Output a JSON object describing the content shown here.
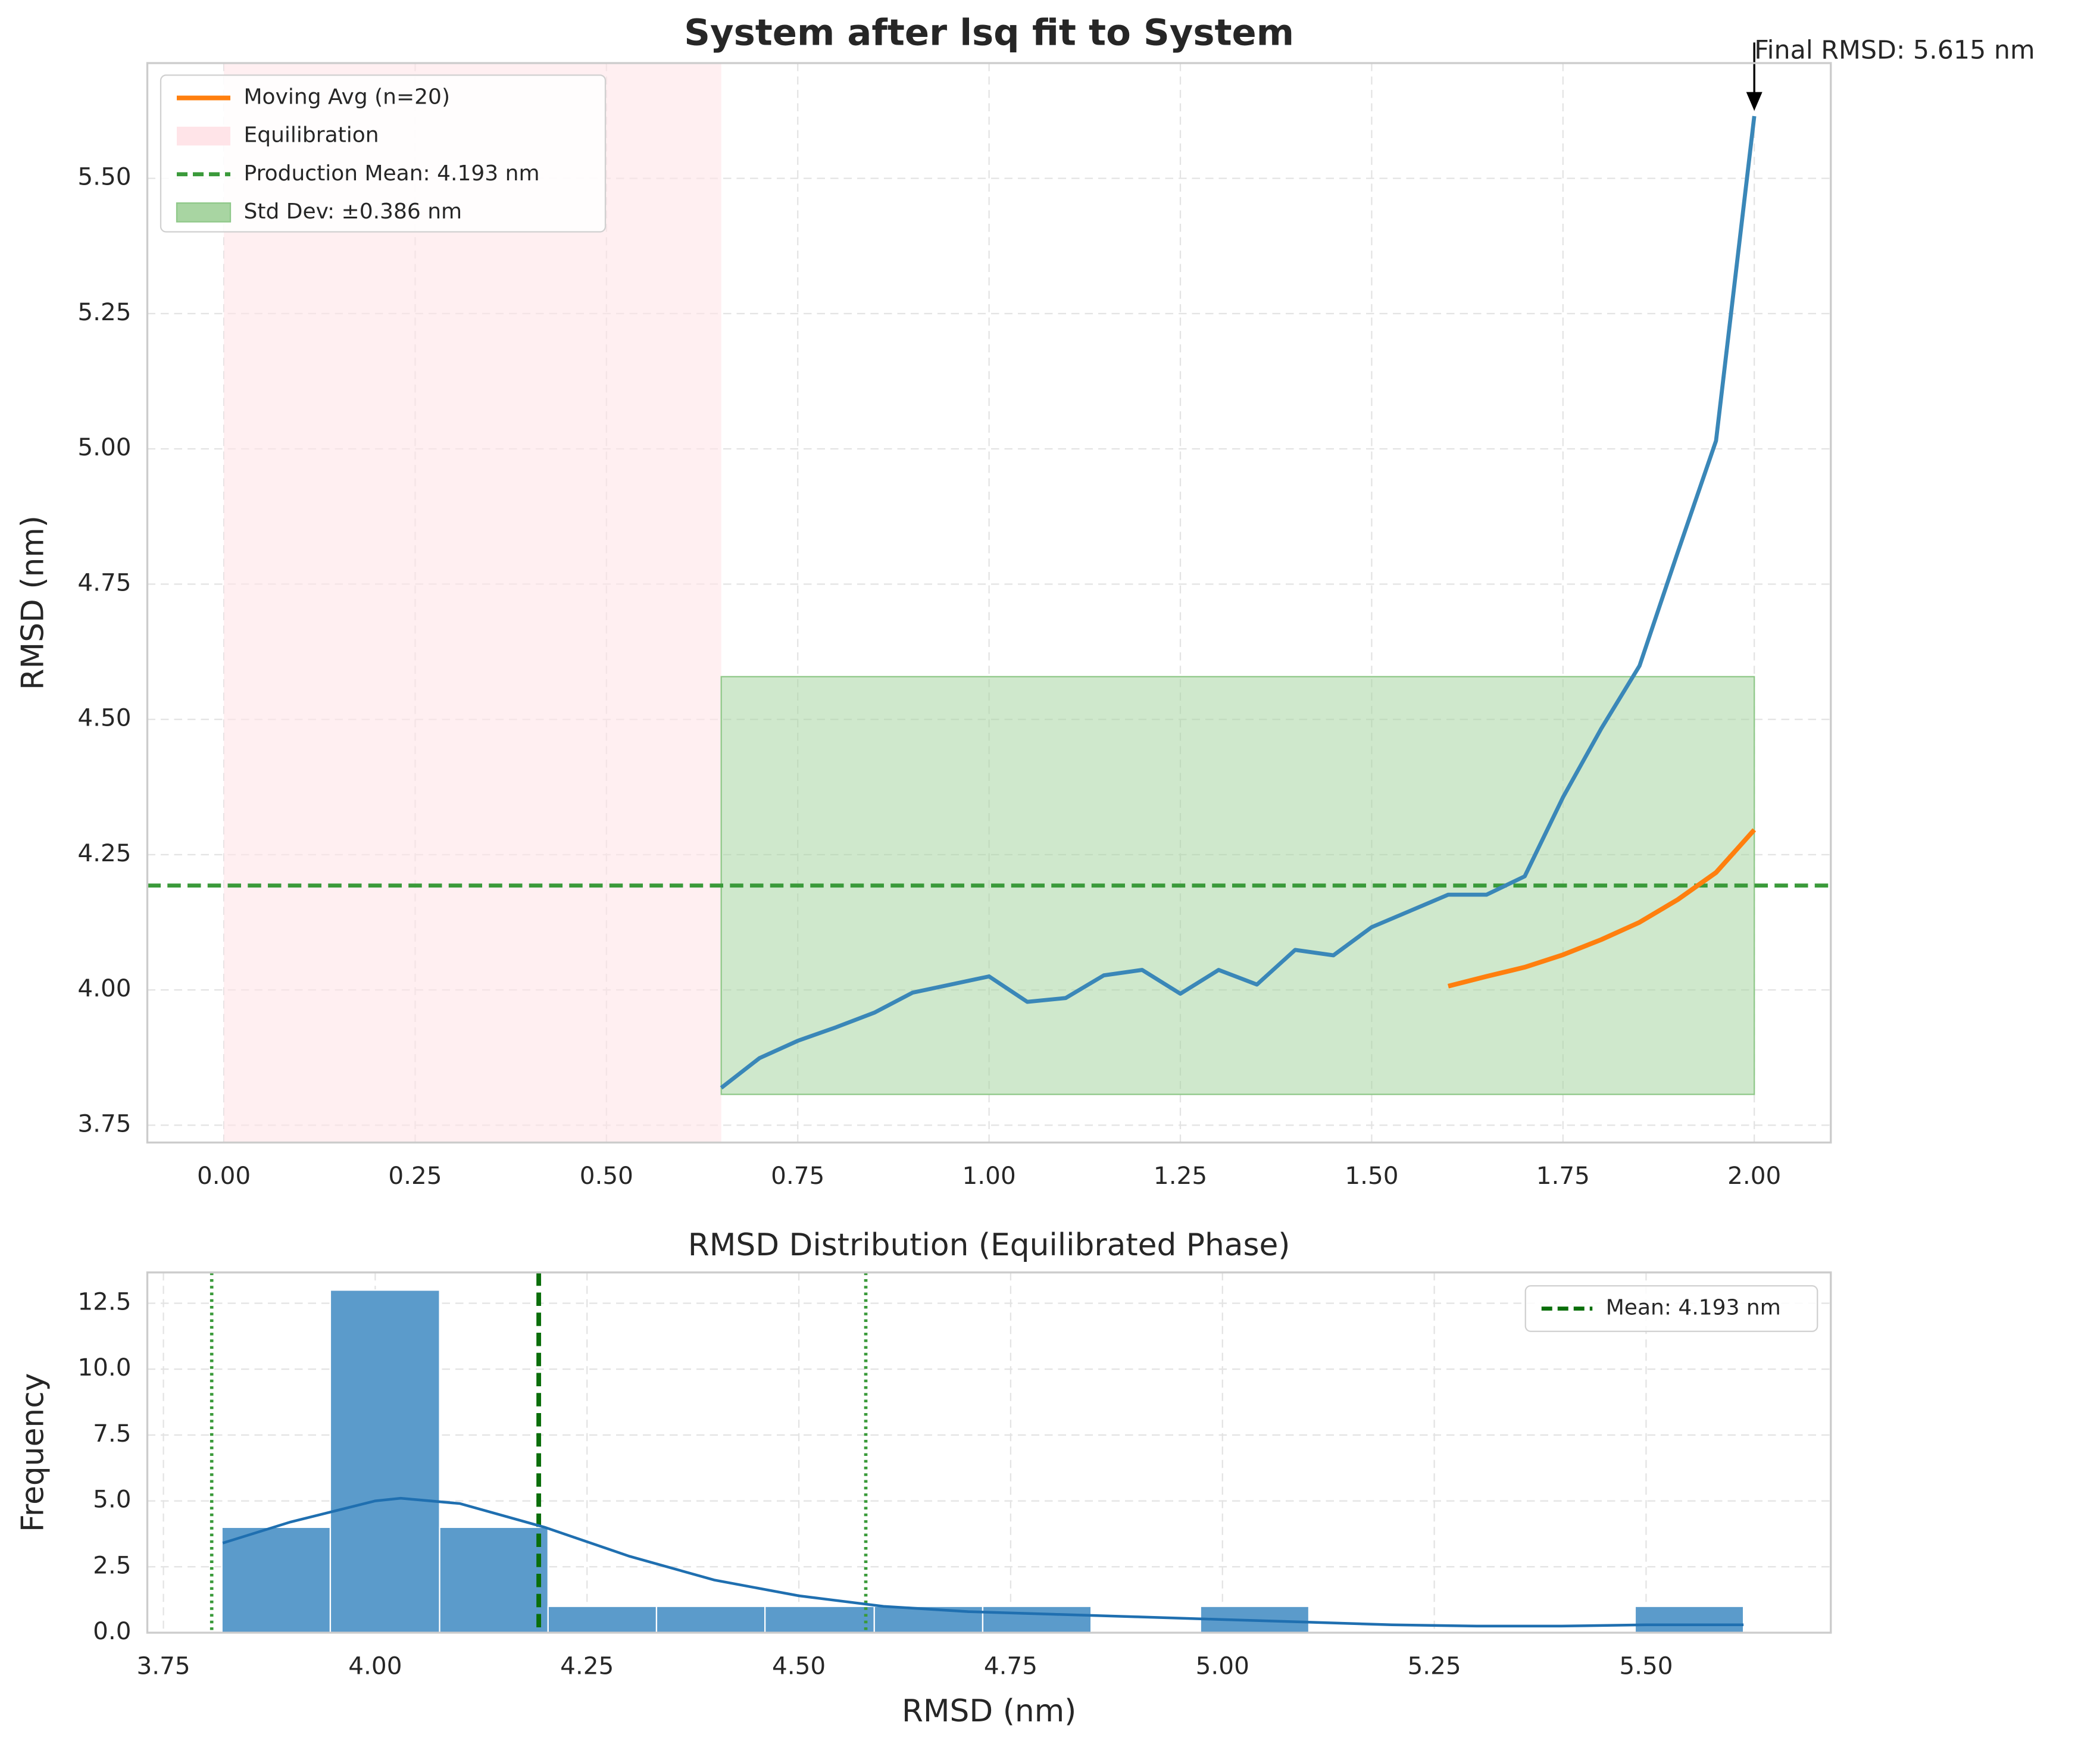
{
  "chart_data": [
    {
      "type": "line",
      "title": "System after lsq fit to System",
      "ylabel": "RMSD (nm)",
      "x": [
        0.65,
        0.7,
        0.75,
        0.8,
        0.85,
        0.9,
        0.95,
        1.0,
        1.05,
        1.1,
        1.15,
        1.2,
        1.25,
        1.3,
        1.35,
        1.4,
        1.45,
        1.5,
        1.55,
        1.6,
        1.65,
        1.7,
        1.75,
        1.8,
        1.85,
        1.9,
        1.95,
        2.0
      ],
      "series": [
        {
          "color": "#3a87b8",
          "values": [
            3.819,
            3.874,
            3.906,
            3.931,
            3.958,
            3.995,
            4.01,
            4.025,
            3.978,
            3.985,
            4.027,
            4.037,
            3.993,
            4.037,
            4.01,
            4.074,
            4.064,
            4.116,
            4.146,
            4.176,
            4.176,
            4.21,
            4.356,
            4.483,
            4.599,
            4.809,
            5.015,
            5.615
          ]
        },
        {
          "name": "Moving Avg (n=20)",
          "color": "#ff7f0e",
          "values": [
            null,
            null,
            null,
            null,
            null,
            null,
            null,
            null,
            null,
            null,
            null,
            null,
            null,
            null,
            null,
            null,
            null,
            null,
            null,
            4.007,
            4.025,
            4.042,
            4.065,
            4.093,
            4.125,
            4.167,
            4.217,
            4.296
          ]
        }
      ],
      "equilibration": {
        "name": "Equilibration",
        "color": "#ffe4e8",
        "x0": 0,
        "x1": 0.65
      },
      "mean": {
        "name": "Production Mean: 4.193 nm",
        "color": "#3a9a3a",
        "value": 4.193
      },
      "std_band": {
        "name": "Std Dev: ±0.386 nm",
        "color": "#a8d5a2",
        "x0": 0.65,
        "x1": 2.0,
        "y0": 3.807,
        "y1": 4.579
      },
      "annotation": {
        "text": "Final RMSD: 5.615 nm",
        "x": 2.0,
        "y": 5.615
      },
      "xlim": [
        -0.1,
        2.1
      ],
      "ylim": [
        3.718,
        5.713
      ],
      "xticks": [
        {
          "value": 0,
          "label": "0.00"
        },
        {
          "value": 0.25,
          "label": "0.25"
        },
        {
          "value": 0.5,
          "label": "0.50"
        },
        {
          "value": 0.75,
          "label": "0.75"
        },
        {
          "value": 1,
          "label": "1.00"
        },
        {
          "value": 1.25,
          "label": "1.25"
        },
        {
          "value": 1.5,
          "label": "1.50"
        },
        {
          "value": 1.75,
          "label": "1.75"
        },
        {
          "value": 2,
          "label": "2.00"
        }
      ],
      "yticks": [
        {
          "value": 3.75,
          "label": "3.75"
        },
        {
          "value": 4,
          "label": "4.00"
        },
        {
          "value": 4.25,
          "label": "4.25"
        },
        {
          "value": 4.5,
          "label": "4.50"
        },
        {
          "value": 4.75,
          "label": "4.75"
        },
        {
          "value": 5,
          "label": "5.00"
        },
        {
          "value": 5.25,
          "label": "5.25"
        },
        {
          "value": 5.5,
          "label": "5.50"
        }
      ],
      "grid": true,
      "legend": "upper left"
    },
    {
      "type": "histogram",
      "title": "RMSD Distribution (Equilibrated Phase)",
      "xlabel": "RMSD (nm)",
      "ylabel": "Frequency",
      "color": "#5b9bcb",
      "bins": [
        3.819,
        3.947,
        4.076,
        4.204,
        4.332,
        4.46,
        4.589,
        4.717,
        4.845,
        4.974,
        5.102,
        5.23,
        5.358,
        5.487,
        5.615
      ],
      "values": [
        4,
        13,
        4,
        1,
        1,
        1,
        1,
        1,
        0,
        1,
        0,
        0,
        0,
        1
      ],
      "kde": {
        "color": "#1f6fb0",
        "x": [
          3.82,
          3.9,
          4.0,
          4.03,
          4.1,
          4.2,
          4.3,
          4.4,
          4.5,
          4.6,
          4.7,
          4.8,
          4.9,
          5.0,
          5.1,
          5.2,
          5.3,
          5.4,
          5.5,
          5.615
        ],
        "values": [
          3.4,
          4.2,
          5.0,
          5.1,
          4.9,
          4.0,
          2.9,
          2.0,
          1.4,
          1.0,
          0.8,
          0.7,
          0.6,
          0.5,
          0.4,
          0.3,
          0.25,
          0.25,
          0.3,
          0.3
        ]
      },
      "mean": {
        "name": "Mean: 4.193 nm",
        "color": "#0a6e0a",
        "value": 4.193
      },
      "std_lines": {
        "color": "#3a9a3a",
        "values": [
          3.807,
          4.579
        ]
      },
      "xlim": [
        3.731,
        5.718
      ],
      "ylim": [
        0,
        13.67
      ],
      "xticks": [
        {
          "value": 3.75,
          "label": "3.75"
        },
        {
          "value": 4,
          "label": "4.00"
        },
        {
          "value": 4.25,
          "label": "4.25"
        },
        {
          "value": 4.5,
          "label": "4.50"
        },
        {
          "value": 4.75,
          "label": "4.75"
        },
        {
          "value": 5,
          "label": "5.00"
        },
        {
          "value": 5.25,
          "label": "5.25"
        },
        {
          "value": 5.5,
          "label": "5.50"
        }
      ],
      "yticks": [
        {
          "value": 0,
          "label": "0.0"
        },
        2.5,
        {
          "value": 5,
          "label": "5.0"
        },
        7.5,
        {
          "value": 10,
          "label": "10.0"
        },
        12.5
      ],
      "grid": true,
      "legend": "upper right"
    }
  ]
}
